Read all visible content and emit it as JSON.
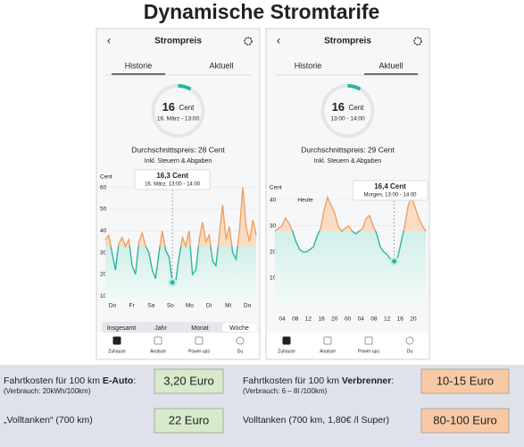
{
  "title": "Dynamische Stromtarife",
  "screens": [
    {
      "header": "Strompreis",
      "tabs": [
        "Historie",
        "Aktuell"
      ],
      "active_tab": 0,
      "price_value": "16",
      "price_unit": "Cent",
      "price_time": "16. März - 13:00",
      "average": "Durchschnittspreis: 28 Cent",
      "average_note": "Inkl. Steuern & Abgaben",
      "chart": {
        "type": "line",
        "y_label": "Cent",
        "ylim": [
          8,
          64
        ],
        "yticks": [
          10,
          20,
          30,
          40,
          50,
          60
        ],
        "x_labels": [
          "Do",
          "Fr",
          "Sa",
          "So",
          "Mo",
          "Di",
          "Mi",
          "Do"
        ],
        "values": [
          36,
          38,
          30,
          22,
          34,
          37,
          33,
          36,
          24,
          20,
          35,
          39,
          33,
          30,
          22,
          18,
          30,
          40,
          31,
          28,
          16.3,
          17,
          28,
          37,
          33,
          40,
          20,
          22,
          36,
          44,
          35,
          38,
          26,
          24,
          38,
          52,
          36,
          42,
          30,
          27,
          40,
          60,
          42,
          35,
          45,
          38
        ],
        "tooltip_value": "16,3 Cent",
        "tooltip_time": "16. März, 13:00 - 14:00"
      },
      "period_tabs": [
        "Insgesamt",
        "Jahr",
        "Monat",
        "Woche"
      ],
      "nav": [
        "Zuhause",
        "Analyse",
        "Power-ups",
        "Du"
      ]
    },
    {
      "header": "Strompreis",
      "tabs": [
        "Historie",
        "Aktuell"
      ],
      "active_tab": 1,
      "price_value": "16",
      "price_unit": "Cent",
      "price_time": "13:00 - 14:00",
      "average": "Durchschnittspreis: 29 Cent",
      "average_note": "Inkl. Steuern & Abgaben",
      "chart": {
        "type": "line",
        "y_label": "Cent",
        "ylim": [
          0,
          44
        ],
        "yticks": [
          10,
          20,
          30,
          40
        ],
        "x_labels": [
          "04",
          "08",
          "12",
          "16",
          "20",
          "00",
          "04",
          "08",
          "12",
          "16",
          "20"
        ],
        "now_label": "Heute",
        "values": [
          28,
          29,
          30,
          33,
          31,
          28,
          24,
          21,
          20,
          20,
          21,
          22,
          26,
          29,
          36,
          41,
          38,
          35,
          30,
          28,
          29,
          30,
          28,
          27,
          28,
          29,
          33,
          34,
          30,
          27,
          22,
          20,
          19,
          17,
          16.4,
          18,
          24,
          30,
          38,
          41,
          37,
          33,
          30,
          28
        ],
        "tooltip_value": "16,4 Cent",
        "tooltip_time": "Morgen, 13:00 - 14:00"
      },
      "nav": [
        "Zuhause",
        "Analyse",
        "Power-ups",
        "Du"
      ]
    }
  ],
  "costs": [
    {
      "label_prefix": "Fahrtkosten für 100 km ",
      "label_bold": "E-Auto",
      "label_suffix": ":",
      "note": "(Verbrauch: 20kWh/100km)",
      "amount": "3,20 Euro"
    },
    {
      "label_prefix": "Fahrtkosten für 100 km ",
      "label_bold": "Verbrenner",
      "label_suffix": ":",
      "note": "(Verbrauch: 6 – 8l /100km)",
      "amount": "10-15 Euro"
    },
    {
      "label_prefix": "„Volltanken“ (700 km)",
      "amount": "22 Euro"
    },
    {
      "label_prefix": "Volltanken (700 km, 1,80€ /l Super)",
      "amount": "80-100 Euro"
    }
  ]
}
